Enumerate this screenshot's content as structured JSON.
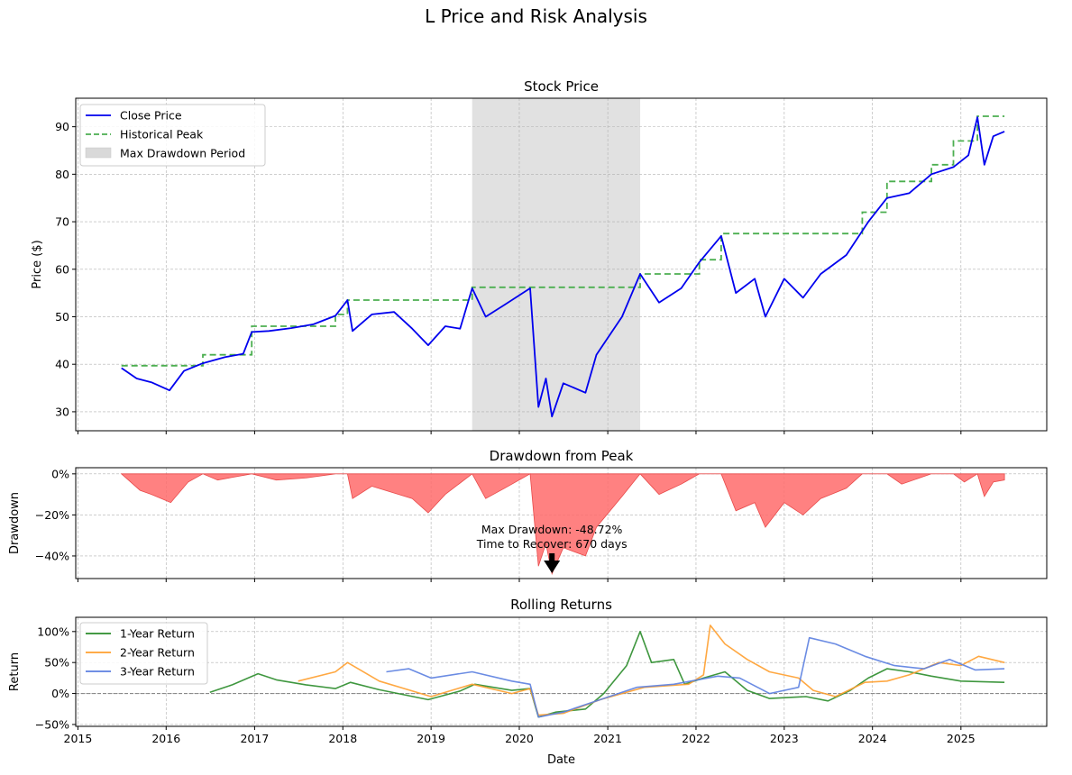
{
  "figure_title": "L Price and Risk Analysis",
  "colors": {
    "close": "#0000ee",
    "peak": "#4caf50",
    "drawdown_span": "#d9d9d9",
    "drawdown_fill": "#ff6b6b",
    "ret1": "#2a8c2a",
    "ret2": "#ff9f2e",
    "ret3": "#5b7fe0"
  },
  "chart_data": [
    {
      "type": "line",
      "title": "Stock Price",
      "xlabel": "",
      "ylabel": "Price ($)",
      "ylim": [
        26,
        96
      ],
      "yticks": [
        30,
        40,
        50,
        60,
        70,
        80,
        90
      ],
      "grid": true,
      "legend": "top-left",
      "series": [
        {
          "name": "Close Price",
          "points": [
            [
              "2015-06-30",
              39.2
            ],
            [
              "2015-09-01",
              37.0
            ],
            [
              "2015-11-01",
              36.2
            ],
            [
              "2016-01-15",
              34.5
            ],
            [
              "2016-03-15",
              38.6
            ],
            [
              "2016-06-01",
              40.2
            ],
            [
              "2016-09-01",
              41.5
            ],
            [
              "2016-11-15",
              42.2
            ],
            [
              "2016-12-20",
              46.8
            ],
            [
              "2017-03-01",
              47.0
            ],
            [
              "2017-06-01",
              47.6
            ],
            [
              "2017-09-01",
              48.4
            ],
            [
              "2017-12-01",
              50.2
            ],
            [
              "2018-01-20",
              53.5
            ],
            [
              "2018-02-10",
              47.0
            ],
            [
              "2018-05-01",
              50.5
            ],
            [
              "2018-08-01",
              51.0
            ],
            [
              "2018-10-15",
              47.5
            ],
            [
              "2018-12-20",
              44.0
            ],
            [
              "2019-03-01",
              48.0
            ],
            [
              "2019-05-01",
              47.5
            ],
            [
              "2019-06-20",
              56.0
            ],
            [
              "2019-08-15",
              50.0
            ],
            [
              "2019-11-01",
              52.5
            ],
            [
              "2020-02-15",
              56.0
            ],
            [
              "2020-03-20",
              31.0
            ],
            [
              "2020-04-20",
              37.0
            ],
            [
              "2020-05-15",
              29.0
            ],
            [
              "2020-07-01",
              36.0
            ],
            [
              "2020-10-01",
              34.0
            ],
            [
              "2020-11-15",
              42.0
            ],
            [
              "2021-03-01",
              50.0
            ],
            [
              "2021-05-15",
              59.0
            ],
            [
              "2021-08-01",
              53.0
            ],
            [
              "2021-11-01",
              56.0
            ],
            [
              "2022-01-15",
              61.5
            ],
            [
              "2022-04-15",
              67.0
            ],
            [
              "2022-06-15",
              55.0
            ],
            [
              "2022-09-01",
              58.0
            ],
            [
              "2022-10-15",
              50.0
            ],
            [
              "2023-01-01",
              58.0
            ],
            [
              "2023-03-20",
              54.0
            ],
            [
              "2023-06-01",
              59.0
            ],
            [
              "2023-09-15",
              63.0
            ],
            [
              "2023-12-15",
              70.0
            ],
            [
              "2024-03-01",
              75.0
            ],
            [
              "2024-06-01",
              76.0
            ],
            [
              "2024-09-01",
              80.0
            ],
            [
              "2024-12-01",
              81.5
            ],
            [
              "2025-02-01",
              84.0
            ],
            [
              "2025-03-10",
              92.0
            ],
            [
              "2025-04-08",
              82.0
            ],
            [
              "2025-05-15",
              88.0
            ],
            [
              "2025-06-30",
              89.0
            ]
          ]
        },
        {
          "name": "Historical Peak",
          "points": [
            [
              "2015-06-30",
              39.7
            ],
            [
              "2016-06-01",
              39.7
            ],
            [
              "2016-06-01",
              42.0
            ],
            [
              "2016-12-20",
              42.0
            ],
            [
              "2016-12-20",
              48.0
            ],
            [
              "2017-12-01",
              48.0
            ],
            [
              "2017-12-01",
              50.5
            ],
            [
              "2018-01-20",
              50.5
            ],
            [
              "2018-01-20",
              53.5
            ],
            [
              "2019-06-20",
              53.5
            ],
            [
              "2019-06-20",
              56.2
            ],
            [
              "2021-05-15",
              56.2
            ],
            [
              "2021-05-15",
              59.0
            ],
            [
              "2022-01-15",
              59.0
            ],
            [
              "2022-01-15",
              62.0
            ],
            [
              "2022-04-15",
              62.0
            ],
            [
              "2022-04-15",
              67.5
            ],
            [
              "2023-11-20",
              67.5
            ],
            [
              "2023-11-20",
              72.0
            ],
            [
              "2024-03-01",
              72.0
            ],
            [
              "2024-03-01",
              78.5
            ],
            [
              "2024-09-01",
              78.5
            ],
            [
              "2024-09-01",
              82.0
            ],
            [
              "2024-12-01",
              82.0
            ],
            [
              "2024-12-01",
              87.0
            ],
            [
              "2025-03-10",
              87.0
            ],
            [
              "2025-03-10",
              92.2
            ],
            [
              "2025-06-30",
              92.2
            ]
          ]
        }
      ],
      "max_drawdown_period": {
        "label": "Max Drawdown Period",
        "start": "2019-06-20",
        "end": "2021-05-15"
      }
    },
    {
      "type": "area",
      "title": "Drawdown from Peak",
      "xlabel": "",
      "ylabel": "Drawdown",
      "ylim": [
        -51,
        3
      ],
      "yticks": [
        0,
        -20,
        -40
      ],
      "ytick_labels": [
        "0%",
        "−20%",
        "−40%"
      ],
      "grid": true,
      "series": [
        {
          "name": "",
          "points": [
            [
              "2015-06-30",
              0
            ],
            [
              "2015-09-15",
              -8
            ],
            [
              "2015-11-01",
              -10
            ],
            [
              "2016-01-20",
              -14
            ],
            [
              "2016-04-01",
              -4
            ],
            [
              "2016-06-01",
              0
            ],
            [
              "2016-08-01",
              -3
            ],
            [
              "2016-12-20",
              0
            ],
            [
              "2017-04-01",
              -3
            ],
            [
              "2017-08-01",
              -2
            ],
            [
              "2017-12-01",
              0
            ],
            [
              "2018-01-20",
              0
            ],
            [
              "2018-02-10",
              -12
            ],
            [
              "2018-05-01",
              -6
            ],
            [
              "2018-10-15",
              -12
            ],
            [
              "2018-12-20",
              -19
            ],
            [
              "2019-03-01",
              -10
            ],
            [
              "2019-06-20",
              0
            ],
            [
              "2019-08-15",
              -12
            ],
            [
              "2019-11-01",
              -7
            ],
            [
              "2020-02-15",
              0
            ],
            [
              "2020-03-20",
              -45
            ],
            [
              "2020-04-20",
              -34
            ],
            [
              "2020-05-15",
              -48.7
            ],
            [
              "2020-07-01",
              -36
            ],
            [
              "2020-10-01",
              -40
            ],
            [
              "2020-11-15",
              -26
            ],
            [
              "2021-03-01",
              -11
            ],
            [
              "2021-05-15",
              0
            ],
            [
              "2021-08-01",
              -10
            ],
            [
              "2021-11-01",
              -5
            ],
            [
              "2022-01-15",
              0
            ],
            [
              "2022-04-15",
              0
            ],
            [
              "2022-06-15",
              -18
            ],
            [
              "2022-09-01",
              -14
            ],
            [
              "2022-10-15",
              -26
            ],
            [
              "2023-01-01",
              -14
            ],
            [
              "2023-03-20",
              -20
            ],
            [
              "2023-06-01",
              -12
            ],
            [
              "2023-09-15",
              -7
            ],
            [
              "2023-11-20",
              0
            ],
            [
              "2024-03-01",
              0
            ],
            [
              "2024-05-01",
              -5
            ],
            [
              "2024-09-01",
              0
            ],
            [
              "2024-12-01",
              0
            ],
            [
              "2025-01-15",
              -4
            ],
            [
              "2025-03-10",
              0
            ],
            [
              "2025-04-08",
              -11
            ],
            [
              "2025-05-15",
              -4
            ],
            [
              "2025-06-30",
              -3
            ]
          ]
        }
      ],
      "annotation": {
        "lines": [
          "Max Drawdown: -48.72%",
          "Time to Recover: 670 days"
        ],
        "x": "2020-05-15",
        "y": -48.7
      }
    },
    {
      "type": "line",
      "title": "Rolling Returns",
      "xlabel": "Date",
      "ylabel": "Return",
      "ylim": [
        -53,
        123
      ],
      "yticks": [
        -50,
        0,
        50,
        100
      ],
      "ytick_labels": [
        "−50%",
        "0%",
        "50%",
        "100%"
      ],
      "xticks": [
        "2015",
        "2016",
        "2017",
        "2018",
        "2019",
        "2020",
        "2021",
        "2022",
        "2023",
        "2024",
        "2025"
      ],
      "grid": true,
      "legend": "top-left",
      "zero_line": true,
      "series": [
        {
          "name": "1-Year Return",
          "points": [
            [
              "2016-06-30",
              2
            ],
            [
              "2016-10-01",
              14
            ],
            [
              "2017-01-15",
              32
            ],
            [
              "2017-04-01",
              22
            ],
            [
              "2017-08-01",
              14
            ],
            [
              "2017-12-01",
              8
            ],
            [
              "2018-02-01",
              18
            ],
            [
              "2018-06-01",
              6
            ],
            [
              "2018-12-20",
              -10
            ],
            [
              "2019-05-01",
              4
            ],
            [
              "2019-07-01",
              15
            ],
            [
              "2019-12-01",
              5
            ],
            [
              "2020-02-15",
              8
            ],
            [
              "2020-03-20",
              -38
            ],
            [
              "2020-06-01",
              -30
            ],
            [
              "2020-10-01",
              -25
            ],
            [
              "2020-12-15",
              0
            ],
            [
              "2021-03-20",
              45
            ],
            [
              "2021-05-15",
              100
            ],
            [
              "2021-07-01",
              50
            ],
            [
              "2021-10-01",
              55
            ],
            [
              "2021-11-15",
              15
            ],
            [
              "2022-02-01",
              25
            ],
            [
              "2022-05-01",
              35
            ],
            [
              "2022-08-01",
              5
            ],
            [
              "2022-11-01",
              -8
            ],
            [
              "2023-04-01",
              -5
            ],
            [
              "2023-07-01",
              -12
            ],
            [
              "2023-10-01",
              5
            ],
            [
              "2023-12-15",
              25
            ],
            [
              "2024-03-01",
              40
            ],
            [
              "2024-06-01",
              35
            ],
            [
              "2024-09-01",
              28
            ],
            [
              "2025-01-01",
              20
            ],
            [
              "2025-06-30",
              18
            ]
          ]
        },
        {
          "name": "2-Year Return",
          "points": [
            [
              "2017-06-30",
              20
            ],
            [
              "2017-12-01",
              35
            ],
            [
              "2018-01-20",
              50
            ],
            [
              "2018-06-01",
              20
            ],
            [
              "2019-01-01",
              -5
            ],
            [
              "2019-06-20",
              15
            ],
            [
              "2019-12-01",
              0
            ],
            [
              "2020-02-15",
              8
            ],
            [
              "2020-03-20",
              -35
            ],
            [
              "2020-07-01",
              -32
            ],
            [
              "2020-12-01",
              -10
            ],
            [
              "2021-06-01",
              10
            ],
            [
              "2021-12-01",
              15
            ],
            [
              "2022-02-01",
              30
            ],
            [
              "2022-03-01",
              110
            ],
            [
              "2022-05-01",
              80
            ],
            [
              "2022-08-01",
              55
            ],
            [
              "2022-11-01",
              35
            ],
            [
              "2023-03-01",
              25
            ],
            [
              "2023-05-01",
              5
            ],
            [
              "2023-08-01",
              -5
            ],
            [
              "2023-12-01",
              18
            ],
            [
              "2024-03-01",
              20
            ],
            [
              "2024-06-01",
              30
            ],
            [
              "2024-10-01",
              50
            ],
            [
              "2025-01-01",
              45
            ],
            [
              "2025-03-15",
              60
            ],
            [
              "2025-06-30",
              50
            ]
          ]
        },
        {
          "name": "3-Year Return",
          "points": [
            [
              "2018-06-30",
              35
            ],
            [
              "2018-10-01",
              40
            ],
            [
              "2019-01-01",
              25
            ],
            [
              "2019-06-20",
              35
            ],
            [
              "2019-12-01",
              20
            ],
            [
              "2020-02-15",
              15
            ],
            [
              "2020-03-20",
              -38
            ],
            [
              "2020-07-01",
              -30
            ],
            [
              "2020-12-01",
              -10
            ],
            [
              "2021-05-01",
              10
            ],
            [
              "2021-10-01",
              15
            ],
            [
              "2022-04-01",
              28
            ],
            [
              "2022-07-01",
              25
            ],
            [
              "2022-11-01",
              0
            ],
            [
              "2023-03-01",
              10
            ],
            [
              "2023-04-15",
              90
            ],
            [
              "2023-08-01",
              80
            ],
            [
              "2023-12-01",
              60
            ],
            [
              "2024-04-01",
              45
            ],
            [
              "2024-08-01",
              40
            ],
            [
              "2024-11-15",
              55
            ],
            [
              "2025-03-01",
              38
            ],
            [
              "2025-06-30",
              40
            ]
          ]
        }
      ]
    }
  ]
}
